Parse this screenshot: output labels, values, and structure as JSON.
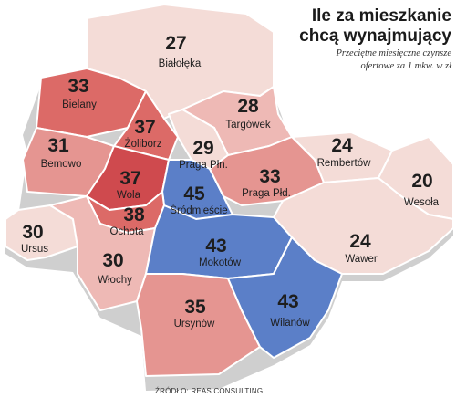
{
  "title": {
    "line1": "Ile za mieszkanie",
    "line2": "chcą wynajmujący"
  },
  "subtitle": {
    "line1": "Przeciętne miesięczne czynsze",
    "line2": "ofertowe  za 1 mkw. w zł"
  },
  "source": "ŹRÓDŁO: REAS CONSULTING",
  "colors": {
    "lowest": "#f4dcd7",
    "low": "#eeb9b5",
    "mid": "#e59591",
    "high": "#dc6a67",
    "highest": "#cf4a4e",
    "blue": "#5b7fc8",
    "border": "#ffffff",
    "shadow": "#cfcfcf"
  },
  "districts": [
    {
      "name": "Białołęka",
      "value": "27"
    },
    {
      "name": "Bielany",
      "value": "33"
    },
    {
      "name": "Żoliborz",
      "value": "37"
    },
    {
      "name": "Targówek",
      "value": "28"
    },
    {
      "name": "Bemowo",
      "value": "31"
    },
    {
      "name": "Praga Płn.",
      "value": "29"
    },
    {
      "name": "Rembertów",
      "value": "24"
    },
    {
      "name": "Wola",
      "value": "37"
    },
    {
      "name": "Śródmieście",
      "value": "45"
    },
    {
      "name": "Praga Płd.",
      "value": "33"
    },
    {
      "name": "Wesoła",
      "value": "20"
    },
    {
      "name": "Ochota",
      "value": "38"
    },
    {
      "name": "Ursus",
      "value": "30"
    },
    {
      "name": "Wawer",
      "value": "24"
    },
    {
      "name": "Włochy",
      "value": "30"
    },
    {
      "name": "Mokotów",
      "value": "43"
    },
    {
      "name": "Ursynów",
      "value": "35"
    },
    {
      "name": "Wilanów",
      "value": "43"
    }
  ]
}
